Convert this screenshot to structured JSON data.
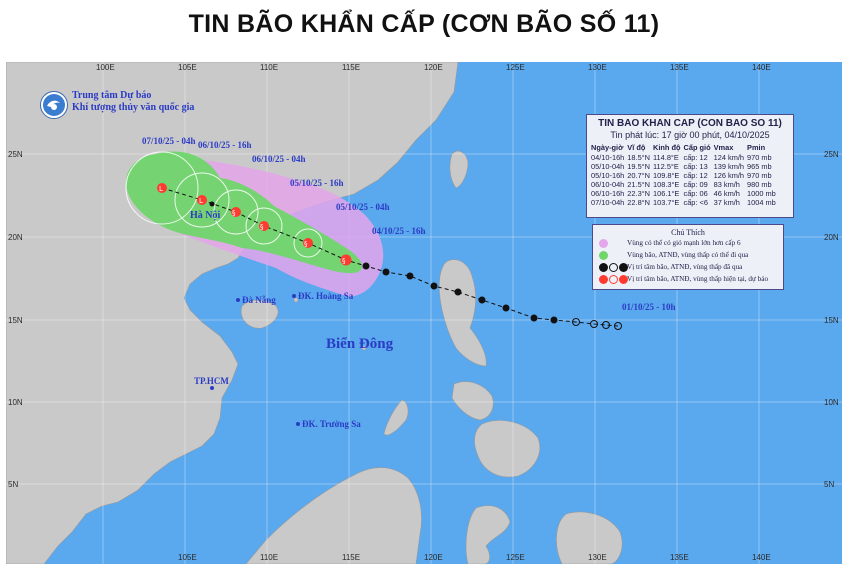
{
  "headline": "TIN BÃO KHẨN CẤP (CƠN BÃO SỐ 11)",
  "agency": {
    "line1": "Trung tâm Dự báo",
    "line2": "Khí tượng thủy văn quốc gia"
  },
  "map": {
    "colors": {
      "sea": "#5aa8ee",
      "land": "#c9c9c9",
      "strong_wind_zone": "#e4a6ea",
      "risk_zone": "#6fd66a",
      "forecast_marker": "#ff3b30",
      "past_marker": "#111111"
    },
    "grid_top_labels": [
      "100E",
      "105E",
      "110E",
      "115E",
      "120E",
      "125E",
      "130E",
      "135E",
      "140E"
    ],
    "grid_bottom_labels": [
      "105E",
      "110E",
      "115E",
      "120E",
      "125E",
      "130E",
      "135E",
      "140E"
    ],
    "grid_left_labels": [
      "25N",
      "20N",
      "15N",
      "10N",
      "5N"
    ],
    "grid_right_labels": [
      "25N",
      "20N",
      "15N",
      "10N",
      "5N"
    ],
    "place_labels": {
      "hanoi": "Hà Nội",
      "danang": "Đà Nẵng",
      "hoangsa": "ĐK. Hoàng Sa",
      "hcm": "TP.HCM",
      "truongsa": "ĐK. Trường Sa",
      "sea_name": "Biển Đông"
    },
    "time_labels": {
      "t0710_04h": "07/10/25 - 04h",
      "t0610_16h": "06/10/25 - 16h",
      "t0610_04h": "06/10/25 - 04h",
      "t0510_16h": "05/10/25 - 16h",
      "t0510_04h": "05/10/25 - 04h",
      "t0410_16h": "04/10/25 - 16h",
      "t0110_10h": "01/10/25 - 10h"
    }
  },
  "infobox": {
    "title": "TIN BAO KHAN CAP (CON BAO SO 11)",
    "issued": "Tin phát lúc: 17 giờ 00 phút, 04/10/2025",
    "headers": [
      "Ngày-giờ",
      "Vĩ độ",
      "Kinh độ",
      "Cấp gió",
      "Vmax",
      "Pmin"
    ],
    "rows": [
      [
        "04/10-16h",
        "18.5°N",
        "114.8°E",
        "cấp: 12",
        "124 km/h",
        "970 mb"
      ],
      [
        "05/10-04h",
        "19.5°N",
        "112.5°E",
        "cấp: 13",
        "139 km/h",
        "965 mb"
      ],
      [
        "05/10-16h",
        "20.7°N",
        "109.8°E",
        "cấp: 12",
        "126 km/h",
        "970 mb"
      ],
      [
        "06/10-04h",
        "21.5°N",
        "108.3°E",
        "cấp: 09",
        "83 km/h",
        "980 mb"
      ],
      [
        "06/10-16h",
        "22.3°N",
        "106.1°E",
        "cấp: 06",
        "46 km/h",
        "1000 mb"
      ],
      [
        "07/10-04h",
        "22.8°N",
        "103.7°E",
        "cấp: <6",
        "37 km/h",
        "1004 mb"
      ]
    ]
  },
  "legend": {
    "title": "Chú Thích",
    "items": [
      "Vùng có thể có gió mạnh lớn hơn cấp 6",
      "Vùng bão, ATNĐ, vùng thấp có thể đi qua",
      "Vị trí tâm bão, ATNĐ, vùng thấp đã qua",
      "Vị trí tâm bão, ATNĐ, vùng thấp hiện tại, dự báo"
    ]
  }
}
